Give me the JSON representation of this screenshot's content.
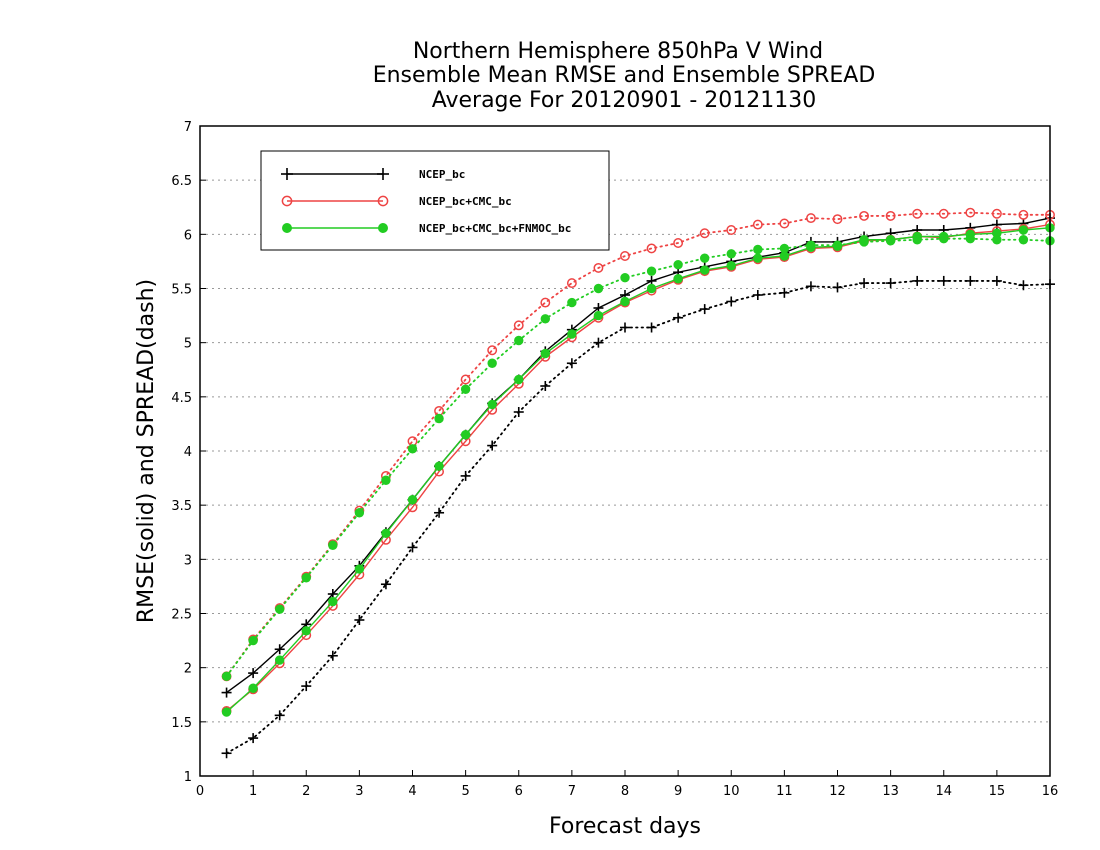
{
  "chart_data": {
    "type": "line",
    "title_lines": [
      "Northern Hemisphere 850hPa V Wind",
      "Ensemble Mean RMSE and Ensemble SPREAD",
      "Average For 20120901 - 20121130"
    ],
    "xlabel": "Forecast days",
    "ylabel": "RMSE(solid) and SPREAD(dash)",
    "xlim": [
      0,
      16
    ],
    "ylim": [
      1,
      7
    ],
    "x_ticks": [
      "0",
      "1",
      "2",
      "3",
      "4",
      "5",
      "6",
      "7",
      "8",
      "9",
      "10",
      "11",
      "12",
      "13",
      "14",
      "15",
      "16"
    ],
    "y_ticks": [
      "1",
      "1.5",
      "2",
      "2.5",
      "3",
      "3.5",
      "4",
      "4.5",
      "5",
      "5.5",
      "6",
      "6.5",
      "7"
    ],
    "grid": "horizontal dotted",
    "legend_position": "top-left",
    "x": [
      0.5,
      1,
      1.5,
      2,
      2.5,
      3,
      3.5,
      4,
      4.5,
      5,
      5.5,
      6,
      6.5,
      7,
      7.5,
      8,
      8.5,
      9,
      9.5,
      10,
      10.5,
      11,
      11.5,
      12,
      12.5,
      13,
      13.5,
      14,
      14.5,
      15,
      15.5,
      16
    ],
    "series": [
      {
        "name": "NCEP_bc",
        "color": "#000000",
        "marker": "plus",
        "style": "solid",
        "show_in_legend": true,
        "values": [
          1.77,
          1.95,
          2.17,
          2.4,
          2.68,
          2.94,
          3.25,
          3.55,
          3.86,
          4.15,
          4.44,
          4.66,
          4.92,
          5.12,
          5.32,
          5.44,
          5.57,
          5.65,
          5.7,
          5.75,
          5.79,
          5.83,
          5.93,
          5.93,
          5.98,
          6.01,
          6.04,
          6.04,
          6.06,
          6.09,
          6.1,
          6.15
        ]
      },
      {
        "name": "NCEP_bc+CMC_bc",
        "color": "#ee4444",
        "marker": "circle-open",
        "style": "solid",
        "show_in_legend": true,
        "values": [
          1.6,
          1.8,
          2.04,
          2.3,
          2.57,
          2.86,
          3.18,
          3.48,
          3.81,
          4.09,
          4.38,
          4.62,
          4.87,
          5.05,
          5.23,
          5.37,
          5.48,
          5.58,
          5.66,
          5.7,
          5.77,
          5.79,
          5.87,
          5.88,
          5.94,
          5.95,
          5.98,
          5.97,
          6.01,
          6.03,
          6.05,
          6.09
        ]
      },
      {
        "name": "NCEP_bc+CMC_bc+FNMOC_bc",
        "color": "#22cc22",
        "marker": "circle-filled",
        "style": "solid",
        "show_in_legend": true,
        "values": [
          1.59,
          1.81,
          2.07,
          2.34,
          2.61,
          2.91,
          3.24,
          3.55,
          3.86,
          4.15,
          4.43,
          4.66,
          4.9,
          5.08,
          5.25,
          5.38,
          5.5,
          5.59,
          5.67,
          5.71,
          5.78,
          5.8,
          5.88,
          5.89,
          5.95,
          5.95,
          5.98,
          5.98,
          6.0,
          6.01,
          6.04,
          6.06
        ]
      },
      {
        "name": "NCEP_bc spread",
        "color": "#000000",
        "marker": "plus",
        "style": "dotted",
        "show_in_legend": false,
        "values": [
          1.21,
          1.35,
          1.56,
          1.83,
          2.11,
          2.44,
          2.77,
          3.11,
          3.43,
          3.77,
          4.05,
          4.36,
          4.6,
          4.81,
          5.0,
          5.14,
          5.14,
          5.23,
          5.31,
          5.38,
          5.44,
          5.46,
          5.52,
          5.51,
          5.55,
          5.55,
          5.57,
          5.57,
          5.57,
          5.57,
          5.53,
          5.54
        ]
      },
      {
        "name": "NCEP_bc+CMC_bc spread",
        "color": "#ee4444",
        "marker": "circle-open",
        "style": "dotted",
        "show_in_legend": false,
        "values": [
          1.92,
          2.26,
          2.55,
          2.84,
          3.14,
          3.45,
          3.77,
          4.09,
          4.37,
          4.66,
          4.93,
          5.16,
          5.37,
          5.55,
          5.69,
          5.8,
          5.87,
          5.92,
          6.01,
          6.04,
          6.09,
          6.1,
          6.15,
          6.14,
          6.17,
          6.17,
          6.19,
          6.19,
          6.2,
          6.19,
          6.18,
          6.18
        ]
      },
      {
        "name": "NCEP_bc+CMC_bc+FNMOC_bc spread",
        "color": "#22cc22",
        "marker": "circle-filled",
        "style": "dotted",
        "show_in_legend": false,
        "values": [
          1.92,
          2.25,
          2.54,
          2.83,
          3.13,
          3.43,
          3.73,
          4.02,
          4.3,
          4.57,
          4.81,
          5.02,
          5.22,
          5.37,
          5.5,
          5.6,
          5.66,
          5.72,
          5.78,
          5.82,
          5.86,
          5.87,
          5.9,
          5.9,
          5.93,
          5.94,
          5.95,
          5.96,
          5.96,
          5.95,
          5.95,
          5.94
        ]
      }
    ]
  }
}
